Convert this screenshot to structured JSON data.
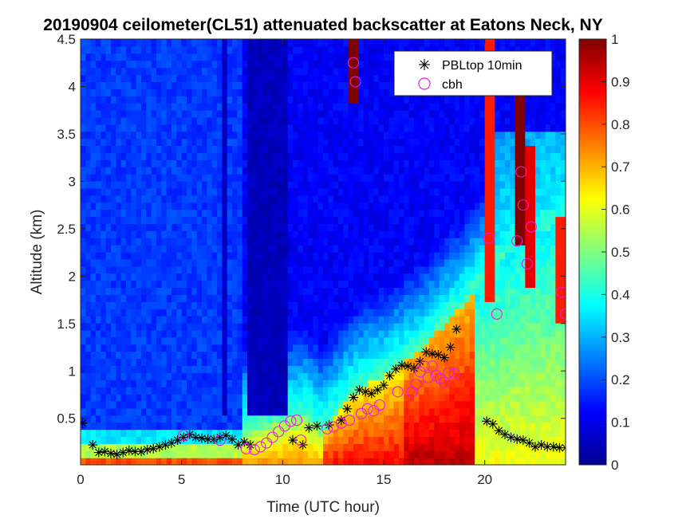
{
  "chart_data": {
    "type": "heatmap",
    "title": "20190904 ceilometer(CL51) attenuated backscatter at Eatons Neck, NY",
    "xlabel": "Time (UTC hour)",
    "ylabel": "Altitude (km)",
    "xlim": [
      0,
      24
    ],
    "ylim": [
      0.01,
      4.5
    ],
    "xticks": [
      "0",
      "5",
      "10",
      "15",
      "20"
    ],
    "yticks": [
      "0.5",
      "1",
      "1.5",
      "2",
      "2.5",
      "3",
      "3.5",
      "4",
      "4.5"
    ],
    "colorbar": {
      "colormap": "jet",
      "clim": [
        0,
        1
      ],
      "ticks": [
        "0",
        "0.1",
        "0.2",
        "0.3",
        "0.4",
        "0.5",
        "0.6",
        "0.7",
        "0.8",
        "0.9",
        "1"
      ]
    },
    "legend": {
      "placement": "top-right"
    },
    "series": [
      {
        "name": "PBLtop 10min",
        "marker": "asterisk",
        "color": "#000000",
        "points": [
          [
            0.1,
            0.45
          ],
          [
            0.6,
            0.22
          ],
          [
            0.9,
            0.14
          ],
          [
            1.2,
            0.15
          ],
          [
            1.5,
            0.13
          ],
          [
            1.8,
            0.12
          ],
          [
            2.1,
            0.14
          ],
          [
            2.4,
            0.16
          ],
          [
            2.7,
            0.15
          ],
          [
            3.0,
            0.15
          ],
          [
            3.3,
            0.17
          ],
          [
            3.6,
            0.18
          ],
          [
            3.9,
            0.2
          ],
          [
            4.2,
            0.22
          ],
          [
            4.5,
            0.24
          ],
          [
            4.8,
            0.27
          ],
          [
            5.1,
            0.3
          ],
          [
            5.4,
            0.33
          ],
          [
            5.7,
            0.3
          ],
          [
            6.0,
            0.29
          ],
          [
            6.3,
            0.28
          ],
          [
            6.6,
            0.28
          ],
          [
            6.9,
            0.3
          ],
          [
            7.2,
            0.32
          ],
          [
            7.5,
            0.28
          ],
          [
            7.8,
            0.22
          ],
          [
            8.1,
            0.25
          ],
          [
            8.4,
            0.22
          ],
          [
            10.5,
            0.27
          ],
          [
            11.0,
            0.22
          ],
          [
            11.3,
            0.4
          ],
          [
            11.7,
            0.42
          ],
          [
            12.3,
            0.43
          ],
          [
            12.9,
            0.48
          ],
          [
            13.2,
            0.6
          ],
          [
            13.5,
            0.72
          ],
          [
            13.8,
            0.8
          ],
          [
            14.1,
            0.78
          ],
          [
            14.4,
            0.76
          ],
          [
            14.7,
            0.8
          ],
          [
            15.0,
            0.85
          ],
          [
            15.3,
            0.95
          ],
          [
            15.6,
            1.02
          ],
          [
            15.9,
            1.06
          ],
          [
            16.2,
            1.05
          ],
          [
            16.5,
            1.03
          ],
          [
            16.8,
            1.1
          ],
          [
            17.1,
            1.2
          ],
          [
            17.4,
            1.18
          ],
          [
            17.7,
            1.17
          ],
          [
            18.0,
            1.14
          ],
          [
            18.3,
            1.25
          ],
          [
            18.6,
            1.44
          ],
          [
            20.1,
            0.47
          ],
          [
            20.4,
            0.44
          ],
          [
            20.7,
            0.37
          ],
          [
            21.0,
            0.33
          ],
          [
            21.3,
            0.3
          ],
          [
            21.6,
            0.28
          ],
          [
            21.9,
            0.27
          ],
          [
            22.2,
            0.24
          ],
          [
            22.5,
            0.2
          ],
          [
            22.8,
            0.22
          ],
          [
            23.1,
            0.2
          ],
          [
            23.4,
            0.2
          ],
          [
            23.7,
            0.19
          ],
          [
            24.0,
            0.19
          ]
        ]
      },
      {
        "name": "cbh",
        "marker": "circle",
        "color": "#e020e0",
        "points": [
          [
            5.1,
            0.32
          ],
          [
            6.9,
            0.27
          ],
          [
            8.2,
            0.18
          ],
          [
            8.6,
            0.17
          ],
          [
            8.9,
            0.2
          ],
          [
            9.2,
            0.24
          ],
          [
            9.5,
            0.3
          ],
          [
            9.8,
            0.36
          ],
          [
            10.1,
            0.42
          ],
          [
            10.4,
            0.47
          ],
          [
            10.7,
            0.48
          ],
          [
            10.9,
            0.27
          ],
          [
            12.2,
            0.39
          ],
          [
            12.5,
            0.41
          ],
          [
            12.9,
            0.45
          ],
          [
            13.3,
            0.48
          ],
          [
            13.5,
            4.25
          ],
          [
            13.6,
            4.05
          ],
          [
            13.9,
            0.55
          ],
          [
            14.2,
            0.6
          ],
          [
            14.5,
            0.58
          ],
          [
            14.8,
            0.64
          ],
          [
            15.7,
            0.78
          ],
          [
            16.4,
            0.78
          ],
          [
            16.6,
            0.86
          ],
          [
            16.8,
            0.99
          ],
          [
            17.0,
            1.05
          ],
          [
            17.2,
            0.93
          ],
          [
            17.4,
            1.05
          ],
          [
            17.6,
            0.95
          ],
          [
            17.8,
            0.92
          ],
          [
            18.0,
            0.88
          ],
          [
            18.2,
            0.98
          ],
          [
            18.5,
            0.97
          ],
          [
            20.2,
            2.4
          ],
          [
            20.6,
            1.6
          ],
          [
            21.6,
            2.37
          ],
          [
            21.8,
            3.1
          ],
          [
            21.9,
            2.75
          ],
          [
            22.1,
            2.13
          ],
          [
            22.3,
            2.52
          ],
          [
            23.8,
            1.83
          ],
          [
            24.0,
            1.6
          ]
        ]
      }
    ]
  }
}
